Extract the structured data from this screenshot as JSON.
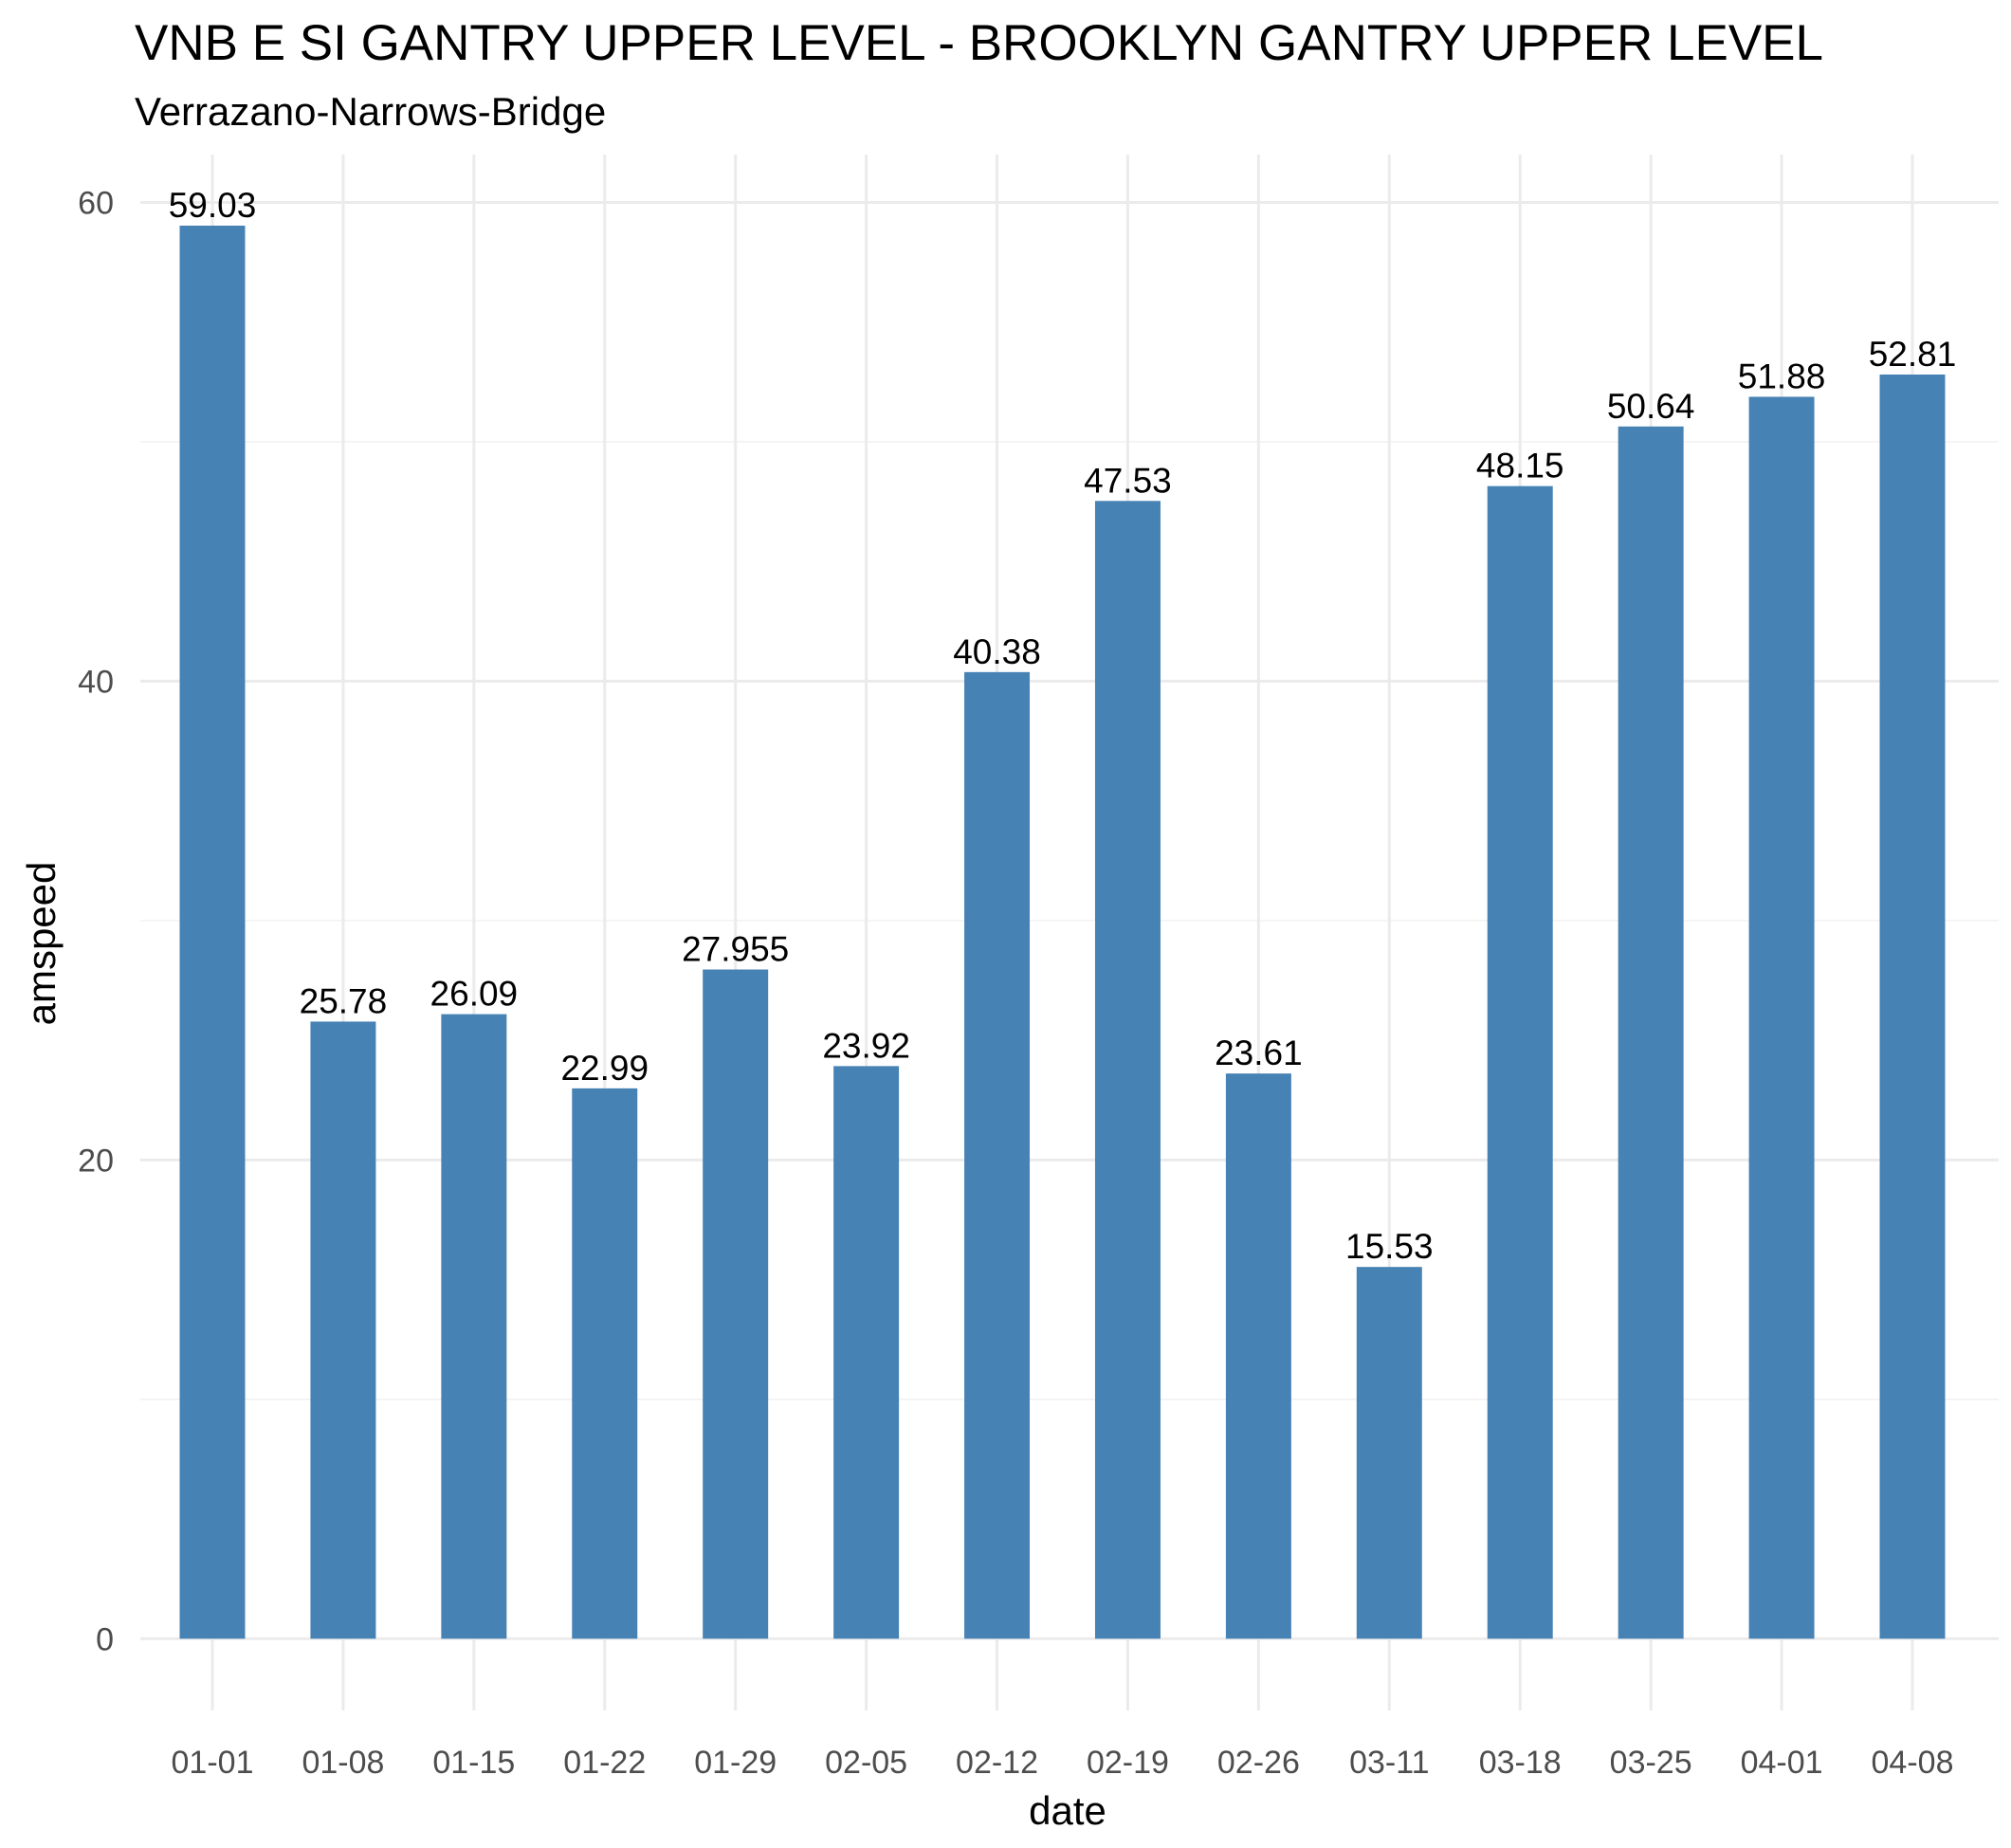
{
  "chart_data": {
    "type": "bar",
    "title": "VNB E SI GANTRY UPPER LEVEL - BROOKLYN GANTRY UPPER LEVEL",
    "subtitle": "Verrazano-Narrows-Bridge",
    "xlabel": "date",
    "ylabel": "amspeed",
    "categories": [
      "01-01",
      "01-08",
      "01-15",
      "01-22",
      "01-29",
      "02-05",
      "02-12",
      "02-19",
      "02-26",
      "03-11",
      "03-18",
      "03-25",
      "04-01",
      "04-08"
    ],
    "values": [
      59.03,
      25.78,
      26.09,
      22.99,
      27.955,
      23.92,
      40.38,
      47.53,
      23.61,
      15.53,
      48.15,
      50.64,
      51.88,
      52.81
    ],
    "data_labels": [
      "59.03",
      "25.78",
      "26.09",
      "22.99",
      "27.955",
      "23.92",
      "40.38",
      "47.53",
      "23.61",
      "15.53",
      "48.15",
      "50.64",
      "51.88",
      "52.81"
    ],
    "yticks": [
      0,
      20,
      40,
      60
    ],
    "ylim": [
      -3.0,
      62.0
    ],
    "grid": true,
    "legend": "none",
    "bar_color": "#4682b4"
  }
}
